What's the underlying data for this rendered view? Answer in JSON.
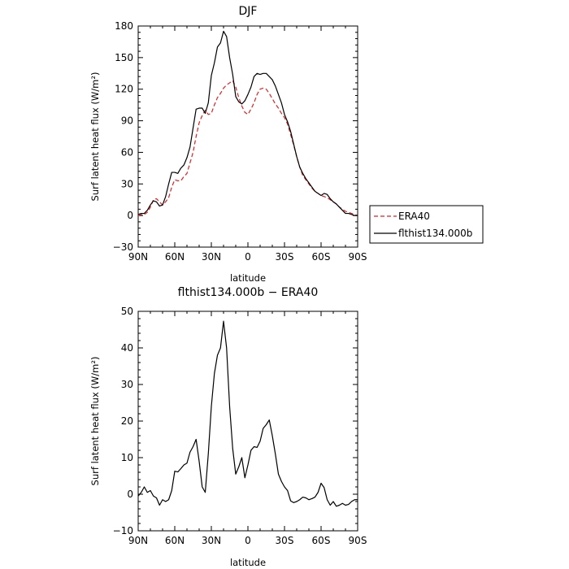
{
  "chart_data": [
    {
      "type": "line",
      "title": "DJF",
      "xlabel": "latitude",
      "ylabel": "Surf latent heat flux (W/m²)",
      "xlim": [
        90,
        -90
      ],
      "ylim": [
        -30,
        180
      ],
      "xtick_values": [
        90,
        60,
        30,
        0,
        -30,
        -60,
        -90
      ],
      "xtick_labels": [
        "90N",
        "60N",
        "30N",
        "0",
        "30S",
        "60S",
        "90S"
      ],
      "ytick_values": [
        -30,
        0,
        30,
        60,
        90,
        120,
        150,
        180
      ],
      "ytick_labels": [
        "−30",
        "0",
        "30",
        "60",
        "90",
        "120",
        "150",
        "180"
      ],
      "legend": "outside-right",
      "series": [
        {
          "name": "ERA40",
          "color": "#e02020",
          "dash": "dashed",
          "x": [
            90,
            87.5,
            85,
            82.5,
            80,
            77.5,
            75,
            72.5,
            70,
            67.5,
            65,
            62.5,
            60,
            57.5,
            55,
            52.5,
            50,
            47.5,
            45,
            42.5,
            40,
            37.5,
            35,
            32.5,
            30,
            27.5,
            25,
            22.5,
            20,
            17.5,
            15,
            12.5,
            10,
            7.5,
            5,
            2.5,
            0,
            -2.5,
            -5,
            -7.5,
            -10,
            -12.5,
            -15,
            -17.5,
            -20,
            -22.5,
            -25,
            -27.5,
            -30,
            -32.5,
            -35,
            -37.5,
            -40,
            -42.5,
            -45,
            -47.5,
            -50,
            -52.5,
            -55,
            -57.5,
            -60,
            -62.5,
            -65,
            -67.5,
            -70,
            -72.5,
            -75,
            -77.5,
            -80,
            -82.5,
            -85,
            -87.5,
            -90
          ],
          "y": [
            0,
            1,
            1,
            3,
            8,
            15,
            16,
            13,
            10,
            13,
            17,
            27,
            34,
            33,
            33,
            37,
            40,
            50,
            60,
            75,
            88,
            95,
            100,
            96,
            97,
            105,
            112,
            116,
            121,
            124,
            126,
            128,
            122,
            112,
            104,
            98,
            96,
            101,
            107,
            115,
            120,
            121,
            120,
            116,
            111,
            106,
            102,
            97,
            93,
            87,
            77,
            67,
            56,
            46,
            38,
            34,
            30,
            26,
            23,
            21,
            19,
            18,
            17,
            15,
            13,
            11,
            8,
            6,
            4,
            3,
            2,
            1,
            0
          ]
        },
        {
          "name": "flthist134.000b",
          "color": "#000000",
          "dash": "solid",
          "x": [
            90,
            87.5,
            85,
            82.5,
            80,
            77.5,
            75,
            72.5,
            70,
            67.5,
            65,
            62.5,
            60,
            57.5,
            55,
            52.5,
            50,
            47.5,
            45,
            42.5,
            40,
            37.5,
            35,
            32.5,
            30,
            27.5,
            25,
            22.5,
            20,
            17.5,
            15,
            12.5,
            10,
            7.5,
            5,
            2.5,
            0,
            -2.5,
            -5,
            -7.5,
            -10,
            -12.5,
            -15,
            -17.5,
            -20,
            -22.5,
            -25,
            -27.5,
            -30,
            -32.5,
            -35,
            -37.5,
            -40,
            -42.5,
            -45,
            -47.5,
            -50,
            -52.5,
            -55,
            -57.5,
            -60,
            -62.5,
            -65,
            -67.5,
            -70,
            -72.5,
            -75,
            -77.5,
            -80,
            -82.5,
            -85,
            -87.5,
            -90
          ],
          "y": [
            1,
            2,
            2,
            5,
            10,
            14,
            13,
            9,
            10,
            18,
            30,
            41,
            41,
            40,
            45,
            48,
            55,
            65,
            83,
            101,
            102,
            102,
            97,
            107,
            133,
            145,
            160,
            164,
            175,
            170,
            150,
            134,
            113,
            108,
            106,
            109,
            115,
            122,
            132,
            135,
            134,
            135,
            135,
            132,
            129,
            123,
            115,
            107,
            96,
            89,
            80,
            68,
            56,
            46,
            40,
            35,
            31,
            27,
            23,
            21,
            19,
            21,
            20,
            16,
            13,
            11,
            8,
            5,
            2,
            2,
            1,
            0,
            0
          ]
        }
      ]
    },
    {
      "type": "line",
      "title": "flthist134.000b − ERA40",
      "xlabel": "latitude",
      "ylabel": "Surf latent heat flux (W/m²)",
      "xlim": [
        90,
        -90
      ],
      "ylim": [
        -10,
        50
      ],
      "xtick_values": [
        90,
        60,
        30,
        0,
        -30,
        -60,
        -90
      ],
      "xtick_labels": [
        "90N",
        "60N",
        "30N",
        "0",
        "30S",
        "60S",
        "90S"
      ],
      "ytick_values": [
        -10,
        0,
        10,
        20,
        30,
        40,
        50
      ],
      "ytick_labels": [
        "−10",
        "0",
        "10",
        "20",
        "30",
        "40",
        "50"
      ],
      "series": [
        {
          "color": "#000000",
          "dash": "solid",
          "x": [
            90,
            87.5,
            85,
            82.5,
            80,
            77.5,
            75,
            72.5,
            70,
            67.5,
            65,
            62.5,
            60,
            57.5,
            55,
            52.5,
            50,
            47.5,
            45,
            42.5,
            40,
            37.5,
            35,
            32.5,
            30,
            27.5,
            25,
            22.5,
            20,
            17.5,
            15,
            12.5,
            10,
            7.5,
            5,
            2.5,
            0,
            -2.5,
            -5,
            -7.5,
            -10,
            -12.5,
            -15,
            -17.5,
            -20,
            -22.5,
            -25,
            -27.5,
            -30,
            -32.5,
            -35,
            -37.5,
            -40,
            -42.5,
            -45,
            -47.5,
            -50,
            -52.5,
            -55,
            -57.5,
            -60,
            -62.5,
            -65,
            -67.5,
            -70,
            -72.5,
            -75,
            -77.5,
            -80,
            -82.5,
            -85,
            -87.5,
            -90
          ],
          "y": [
            -0.5,
            0.5,
            2,
            0.5,
            1,
            -0.5,
            -1,
            -3,
            -1.5,
            -2,
            -1.5,
            1,
            6.3,
            6.1,
            7,
            8,
            8.5,
            11.5,
            13,
            15,
            9,
            2,
            0.5,
            11,
            24,
            33,
            38,
            40,
            47.3,
            40,
            24,
            12.5,
            5.5,
            7.5,
            10,
            4.5,
            8,
            12,
            13,
            12.8,
            14.5,
            18,
            19,
            20.3,
            16,
            11,
            5.5,
            3.5,
            2,
            1,
            -1.8,
            -2.3,
            -2,
            -1.5,
            -0.8,
            -1,
            -1.5,
            -1.2,
            -0.8,
            0.5,
            3,
            1.8,
            -1.5,
            -3,
            -2,
            -3.3,
            -3,
            -2.5,
            -3,
            -2.8,
            -2,
            -1.5,
            -1.5
          ]
        }
      ]
    }
  ]
}
